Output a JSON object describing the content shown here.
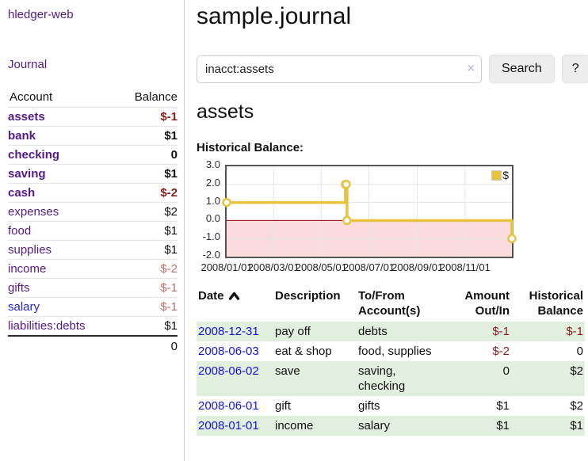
{
  "app": {
    "brand": "hledger-web",
    "nav": {
      "journal": "Journal"
    }
  },
  "sidebar": {
    "headers": {
      "account": "Account",
      "balance": "Balance"
    },
    "accounts": [
      {
        "name": "assets",
        "balance": "$-1",
        "indent": 0,
        "bold": true
      },
      {
        "name": "bank",
        "balance": "$1",
        "indent": 1,
        "bold": true
      },
      {
        "name": "checking",
        "balance": "0",
        "indent": 2,
        "bold": true
      },
      {
        "name": "saving",
        "balance": "$1",
        "indent": 2,
        "bold": true
      },
      {
        "name": "cash",
        "balance": "$-2",
        "indent": 1,
        "bold": true
      },
      {
        "name": "expenses",
        "balance": "$2",
        "indent": 0,
        "bold": false
      },
      {
        "name": "food",
        "balance": "$1",
        "indent": 1,
        "bold": false
      },
      {
        "name": "supplies",
        "balance": "$1",
        "indent": 1,
        "bold": false
      },
      {
        "name": "income",
        "balance": "$-2",
        "indent": 0,
        "bold": false
      },
      {
        "name": "gifts",
        "balance": "$-1",
        "indent": 1,
        "bold": false
      },
      {
        "name": "salary",
        "balance": "$-1",
        "indent": 1,
        "bold": false,
        "unvisited": true
      },
      {
        "name": "liabilities:debts",
        "balance": "$1",
        "indent": 0,
        "bold": false
      }
    ],
    "total": "0"
  },
  "main": {
    "title": "sample.journal",
    "search": {
      "value": "inacct:assets",
      "clear_icon": "×",
      "search_button": "Search",
      "help_button": "?"
    },
    "account_heading": "assets",
    "chart_title": "Historical Balance:"
  },
  "chart_data": {
    "type": "line",
    "title": "Historical Balance:",
    "series": [
      {
        "name": "$",
        "color": "#e8c240",
        "steps": true,
        "points": [
          [
            "2008-01-01",
            1
          ],
          [
            "2008-06-01",
            2
          ],
          [
            "2008-06-02",
            2
          ],
          [
            "2008-06-03",
            0
          ],
          [
            "2008-12-31",
            -1
          ]
        ]
      }
    ],
    "xlim": [
      "2008-01-01",
      "2008-12-31"
    ],
    "ylim": [
      -2,
      3
    ],
    "xticks": [
      "2008/01/01",
      "2008/03/01",
      "2008/05/01",
      "2008/07/01",
      "2008/09/01",
      "2008/11/01"
    ],
    "yticks": [
      "3.0",
      "2.0",
      "1.0",
      "0.0",
      "-1.0",
      "-2.0"
    ],
    "grid": true,
    "legend_position": "top-right",
    "grid_color": "#e6e6e6",
    "zero_line_color": "#8b0000",
    "negative_region_color": "#fbdcdc",
    "marker_fill": "#ffffff"
  },
  "register": {
    "headers": {
      "date": "Date",
      "description": "Description",
      "accounts": "To/From Account(s)",
      "amount": "Amount Out/In",
      "balance": "Historical Balance"
    },
    "sort": {
      "column": "date",
      "direction": "ascending"
    },
    "rows": [
      {
        "date": "2008-12-31",
        "description": "pay off",
        "accounts": "debts",
        "amount": "$-1",
        "balance": "$-1"
      },
      {
        "date": "2008-06-03",
        "description": "eat & shop",
        "accounts": "food, supplies",
        "amount": "$-2",
        "balance": "0"
      },
      {
        "date": "2008-06-02",
        "description": "save",
        "accounts": "saving, checking",
        "amount": "0",
        "balance": "$2"
      },
      {
        "date": "2008-06-01",
        "description": "gift",
        "accounts": "gifts",
        "amount": "$1",
        "balance": "$2"
      },
      {
        "date": "2008-01-01",
        "description": "income",
        "accounts": "salary",
        "amount": "$1",
        "balance": "$1"
      }
    ]
  },
  "colors": {
    "link_visited_purple": "#551a8b",
    "link_unvisited_blue": "#2323dd",
    "negative_strong": "#8b1c1c",
    "negative_soft": "#bf6c6c",
    "row_stripe_green": "#e1efdf",
    "chart_series_gold": "#e8c240",
    "chart_negative_region": "#fbdcdc",
    "chart_zero_line": "#8b0000"
  }
}
